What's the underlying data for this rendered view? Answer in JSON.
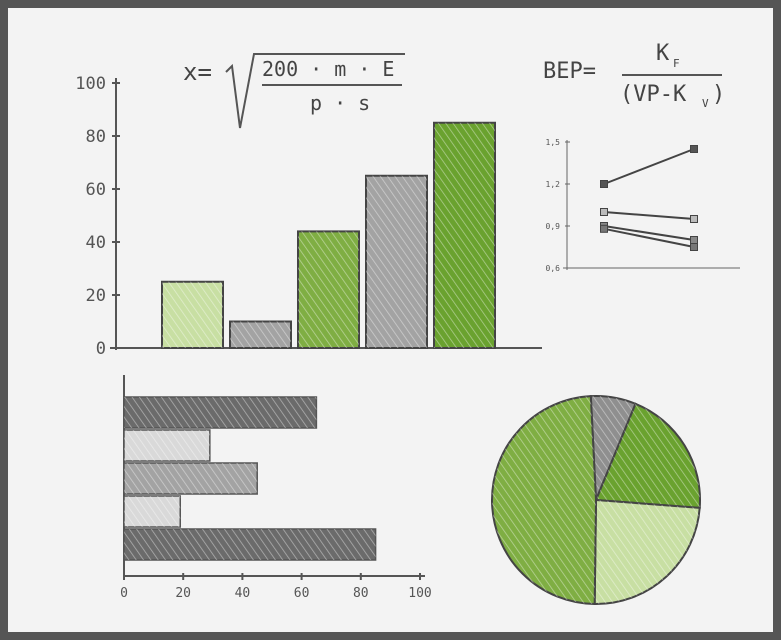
{
  "formulas": {
    "left": {
      "lhs": "x=",
      "numerator": "200 · m · E",
      "denominator": "p · s"
    },
    "right": {
      "lhs": "BEP=",
      "numerator": "K",
      "numerator_sub": "F",
      "denominator": "(VP-K",
      "denominator_sub": "V",
      "denominator_close": ")"
    }
  },
  "colors": {
    "green_light": "#c8dfa3",
    "green_mid": "#7fae43",
    "green_dark": "#6aa22f",
    "gray_light": "#d9d9d9",
    "gray_mid": "#a3a3a3",
    "gray_dark": "#6b6b6b",
    "ink": "#555555"
  },
  "chart_data": [
    {
      "type": "bar",
      "orientation": "vertical",
      "ylim": [
        0,
        100
      ],
      "yticks": [
        "0",
        "20",
        "40",
        "60",
        "80",
        "100"
      ],
      "values": [
        25,
        10,
        44,
        65,
        85
      ],
      "bar_colors": [
        "#c8dfa3",
        "#a3a3a3",
        "#7fae43",
        "#a3a3a3",
        "#6aa22f"
      ]
    },
    {
      "type": "line",
      "ylim": [
        0.6,
        1.5
      ],
      "yticks": [
        "0,6",
        "0,9",
        "1,2",
        "1,5"
      ],
      "x": [
        0,
        1
      ],
      "series": [
        {
          "values": [
            1.2,
            1.45
          ]
        },
        {
          "values": [
            1.0,
            0.95
          ]
        },
        {
          "values": [
            0.9,
            0.8
          ]
        },
        {
          "values": [
            0.88,
            0.75
          ]
        }
      ]
    },
    {
      "type": "bar",
      "orientation": "horizontal",
      "xlim": [
        0,
        100
      ],
      "xticks": [
        "0",
        "20",
        "40",
        "60",
        "80",
        "100"
      ],
      "values": [
        65,
        29,
        45,
        19,
        85
      ],
      "bar_colors": [
        "#6b6b6b",
        "#d9d9d9",
        "#a3a3a3",
        "#d9d9d9",
        "#6b6b6b"
      ]
    },
    {
      "type": "pie",
      "values": [
        7,
        20,
        24,
        49
      ],
      "slice_colors": [
        "#8f8f8f",
        "#6aa22f",
        "#c8dfa3",
        "#7fae43"
      ]
    }
  ]
}
